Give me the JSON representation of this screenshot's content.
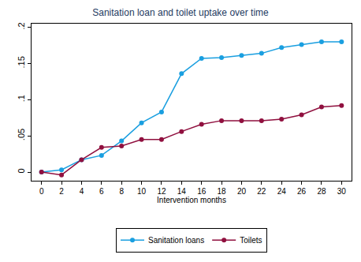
{
  "chart_data": {
    "type": "line",
    "title": "Sanitation loan and toilet uptake over time",
    "x_label": "Intervention months",
    "x": [
      0,
      2,
      4,
      6,
      8,
      10,
      12,
      14,
      16,
      18,
      20,
      22,
      24,
      26,
      28,
      30
    ],
    "series": [
      {
        "name": "Sanitation loans",
        "color": "#1a9fe0",
        "marker": "circle",
        "line_style": "solid",
        "values": [
          0,
          0.003,
          0.017,
          0.023,
          0.043,
          0.068,
          0.083,
          0.136,
          0.157,
          0.158,
          0.161,
          0.164,
          0.172,
          0.176,
          0.18,
          0.18
        ]
      },
      {
        "name": "Toilets",
        "color": "#90103f",
        "marker": "circle",
        "line_style": "solid",
        "values": [
          0,
          -0.004,
          0.017,
          0.034,
          0.036,
          0.045,
          0.045,
          0.056,
          0.066,
          0.071,
          0.071,
          0.071,
          0.073,
          0.079,
          0.09,
          0.092
        ]
      }
    ],
    "xlim": [
      -1,
      31
    ],
    "xticks": [
      0,
      2,
      4,
      6,
      8,
      10,
      12,
      14,
      16,
      18,
      20,
      22,
      24,
      26,
      28,
      30
    ],
    "ylim": [
      -0.012,
      0.205
    ],
    "yticks": [
      0,
      {
        "value": 0.05,
        "label": ".05"
      },
      {
        "value": 0.1,
        "label": ".1"
      },
      {
        "value": 0.15,
        "label": ".15"
      },
      {
        "value": 0.2,
        "label": ".2"
      }
    ],
    "grid": false,
    "legend": "bottom"
  }
}
